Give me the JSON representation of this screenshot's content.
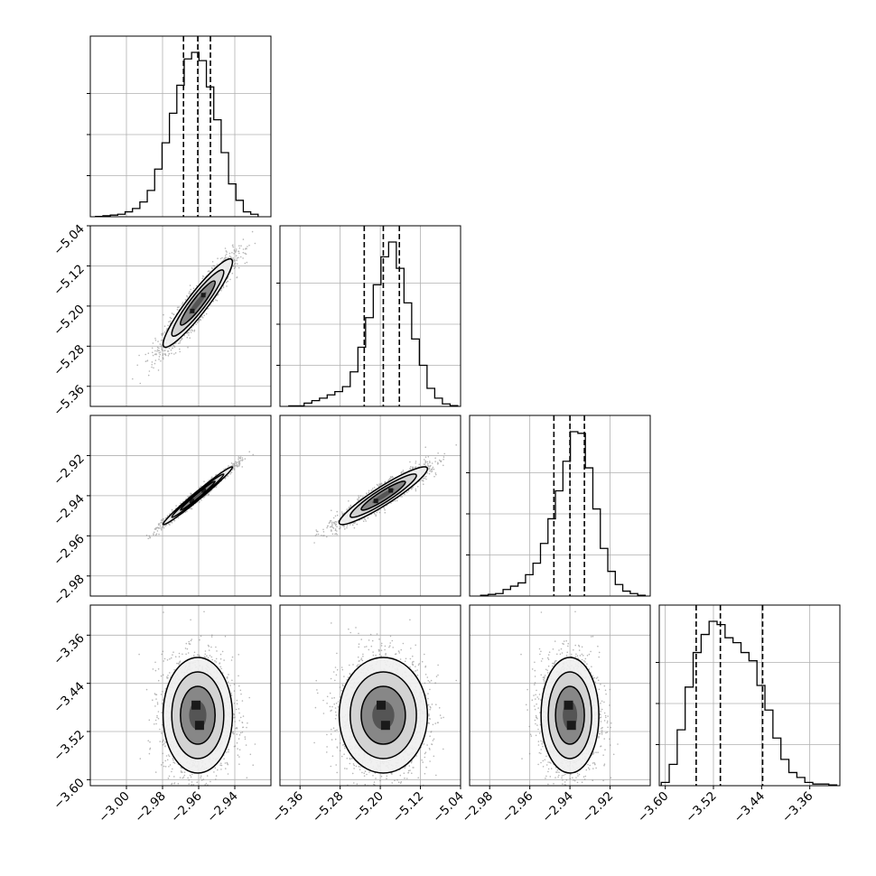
{
  "chart_data": {
    "type": "corner",
    "title": "",
    "grid": true,
    "parameters": [
      {
        "range": [
          -3.02,
          -2.92
        ],
        "ticks": [
          -3.0,
          -2.98,
          -2.96,
          -2.94
        ],
        "tick_labels": [
          "−3.00",
          "−2.98",
          "−2.96",
          "−2.94"
        ],
        "quantiles": [
          -2.9684,
          -2.9605,
          -2.9535
        ]
      },
      {
        "range": [
          -5.4,
          -5.04
        ],
        "ticks": [
          -5.36,
          -5.28,
          -5.2,
          -5.12,
          -5.04
        ],
        "tick_labels": [
          "−5.36",
          "−5.28",
          "−5.20",
          "−5.12",
          "−5.04"
        ],
        "quantiles": [
          -5.232,
          -5.194,
          -5.162
        ]
      },
      {
        "range": [
          -2.99,
          -2.9
        ],
        "ticks": [
          -2.98,
          -2.96,
          -2.94,
          -2.92
        ],
        "tick_labels": [
          "−2.98",
          "−2.96",
          "−2.94",
          "−2.92"
        ],
        "quantiles": [
          -2.948,
          -2.94,
          -2.9328
        ]
      },
      {
        "range": [
          -3.61,
          -3.31
        ],
        "ticks": [
          -3.6,
          -3.52,
          -3.44,
          -3.36
        ],
        "tick_labels": [
          "−3.60",
          "−3.52",
          "−3.44",
          "−3.36"
        ],
        "quantiles": [
          -3.5487,
          -3.5085,
          -3.4383
        ]
      }
    ],
    "histograms": [
      {
        "bin_range": [
          -3.0171,
          -2.9271
        ],
        "values": [
          0.2,
          0.6,
          1,
          1.5,
          3,
          5,
          9,
          16,
          29,
          45,
          63,
          80,
          96,
          100,
          95,
          79,
          59,
          39,
          20,
          10,
          3,
          1.5
        ]
      },
      {
        "bin_range": [
          -5.3824,
          -5.0456
        ],
        "values": [
          0.3,
          0.3,
          2,
          3.5,
          5,
          7,
          9,
          12,
          21,
          36,
          54,
          74,
          91,
          100,
          84,
          63,
          41,
          25,
          11,
          5,
          1.5,
          0.5
        ]
      },
      {
        "bin_range": [
          -2.9845,
          -2.9025
        ],
        "values": [
          0.5,
          1,
          1.5,
          4,
          6,
          8,
          13,
          20,
          32,
          47,
          64,
          82,
          100,
          99,
          78,
          53,
          29,
          15,
          7,
          3,
          1.5,
          0.5
        ]
      },
      {
        "bin_range": [
          -3.6067,
          -3.3152
        ],
        "values": [
          2,
          13,
          34,
          60,
          81,
          92,
          100,
          98,
          90,
          87,
          81,
          76,
          61,
          46,
          29,
          16,
          8,
          5,
          2,
          1,
          1,
          0.5
        ]
      }
    ],
    "pairs": [
      {
        "x": 0,
        "y": 1,
        "mean": [
          -2.9605,
          -5.194
        ],
        "sd": [
          0.0096,
          0.044
        ],
        "corr": 0.93
      },
      {
        "x": 0,
        "y": 2,
        "mean": [
          -2.9605,
          -2.94
        ],
        "sd": [
          0.0096,
          0.0072
        ],
        "corr": 0.985
      },
      {
        "x": 1,
        "y": 2,
        "mean": [
          -5.194,
          -2.94
        ],
        "sd": [
          0.044,
          0.0072
        ],
        "corr": 0.93
      },
      {
        "x": 0,
        "y": 3,
        "mean": [
          -2.9605,
          -3.493
        ],
        "sd": [
          0.0096,
          0.048
        ],
        "corr": 0.0
      },
      {
        "x": 1,
        "y": 3,
        "mean": [
          -5.194,
          -3.493
        ],
        "sd": [
          0.044,
          0.048
        ],
        "corr": 0.0
      },
      {
        "x": 2,
        "y": 3,
        "mean": [
          -2.94,
          -3.493
        ],
        "sd": [
          0.0072,
          0.048
        ],
        "corr": 0.0
      }
    ],
    "contour_levels_sigma": [
      0.5,
      1.0,
      1.5,
      2.0
    ],
    "style": {
      "line_color": "#000000",
      "grid_color": "#b0b0b0",
      "point_color": "#7a7a7a",
      "bin_shades": [
        "#f0f0f0",
        "#cfcfcf",
        "#a9a9a9",
        "#7e7e7e",
        "#505050",
        "#1a1a1a"
      ]
    }
  }
}
